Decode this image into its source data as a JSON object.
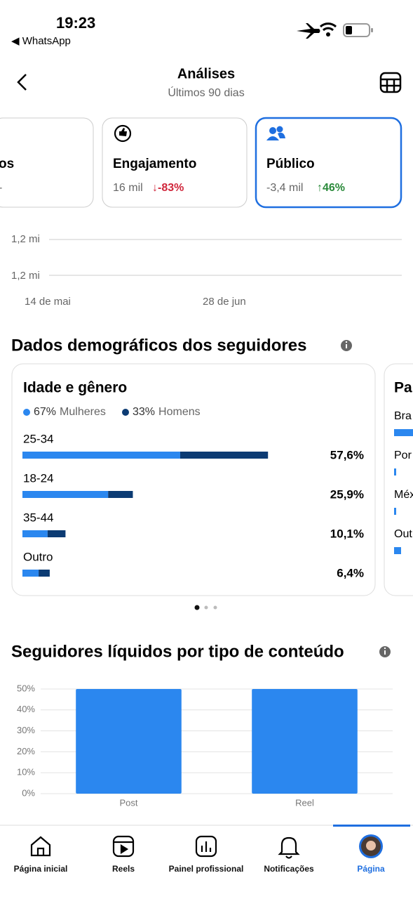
{
  "status_bar": {
    "time": "19:23",
    "back_app": "◀ WhatsApp"
  },
  "header": {
    "title": "Análises",
    "subtitle": "Últimos 90 dias"
  },
  "cards": [
    {
      "title": "os",
      "value": "-",
      "change": ""
    },
    {
      "title": "Engajamento",
      "value": "16 mil",
      "change": "↓-83%"
    },
    {
      "title": "Público",
      "value": "-3,4 mil",
      "change": "↑46%"
    }
  ],
  "trend": {
    "y_labels": [
      "1,2 mi",
      "1,2 mi"
    ],
    "x_labels": [
      "14 de mai",
      "28 de jun"
    ]
  },
  "demographics": {
    "title": "Dados demográficos dos seguidores",
    "card_title": "Idade e gênero",
    "legend": [
      {
        "percent": "67%",
        "name": "Mulheres",
        "color": "#2b87ef"
      },
      {
        "percent": "33%",
        "name": "Homens",
        "color": "#0c3b73"
      }
    ],
    "groups": [
      {
        "label": "25-34",
        "values": [
          37.0,
          20.6
        ],
        "total": 57.6,
        "total_label": "57,6%"
      },
      {
        "label": "18-24",
        "values": [
          20.1,
          5.8
        ],
        "total": 25.9,
        "total_label": "25,9%"
      },
      {
        "label": "35-44",
        "values": [
          5.9,
          4.2
        ],
        "total": 10.1,
        "total_label": "10,1%"
      },
      {
        "label": "Outro",
        "values": [
          3.8,
          2.6
        ],
        "total": 6.4,
        "total_label": "6,4%"
      }
    ],
    "next_card": {
      "title": "Pa",
      "rows": [
        "Bra",
        "Por",
        "Méx",
        "Out"
      ]
    }
  },
  "chart_data": {
    "type": "bar",
    "title": "Seguidores líquidos por tipo de conteúdo",
    "categories": [
      "Post",
      "Reel"
    ],
    "values": [
      50,
      50
    ],
    "color": "#2b87ef",
    "ylim": [
      0,
      50
    ],
    "yticks": [
      {
        "value": 0,
        "label": "0%"
      },
      {
        "value": 10,
        "label": "10%"
      },
      {
        "value": 20,
        "label": "20%"
      },
      {
        "value": 30,
        "label": "30%"
      },
      {
        "value": 40,
        "label": "40%"
      },
      {
        "value": 50,
        "label": "50%"
      }
    ],
    "grid": true
  },
  "nav": [
    "Página inicial",
    "Reels",
    "Painel profissional",
    "Notificações",
    "Página"
  ]
}
